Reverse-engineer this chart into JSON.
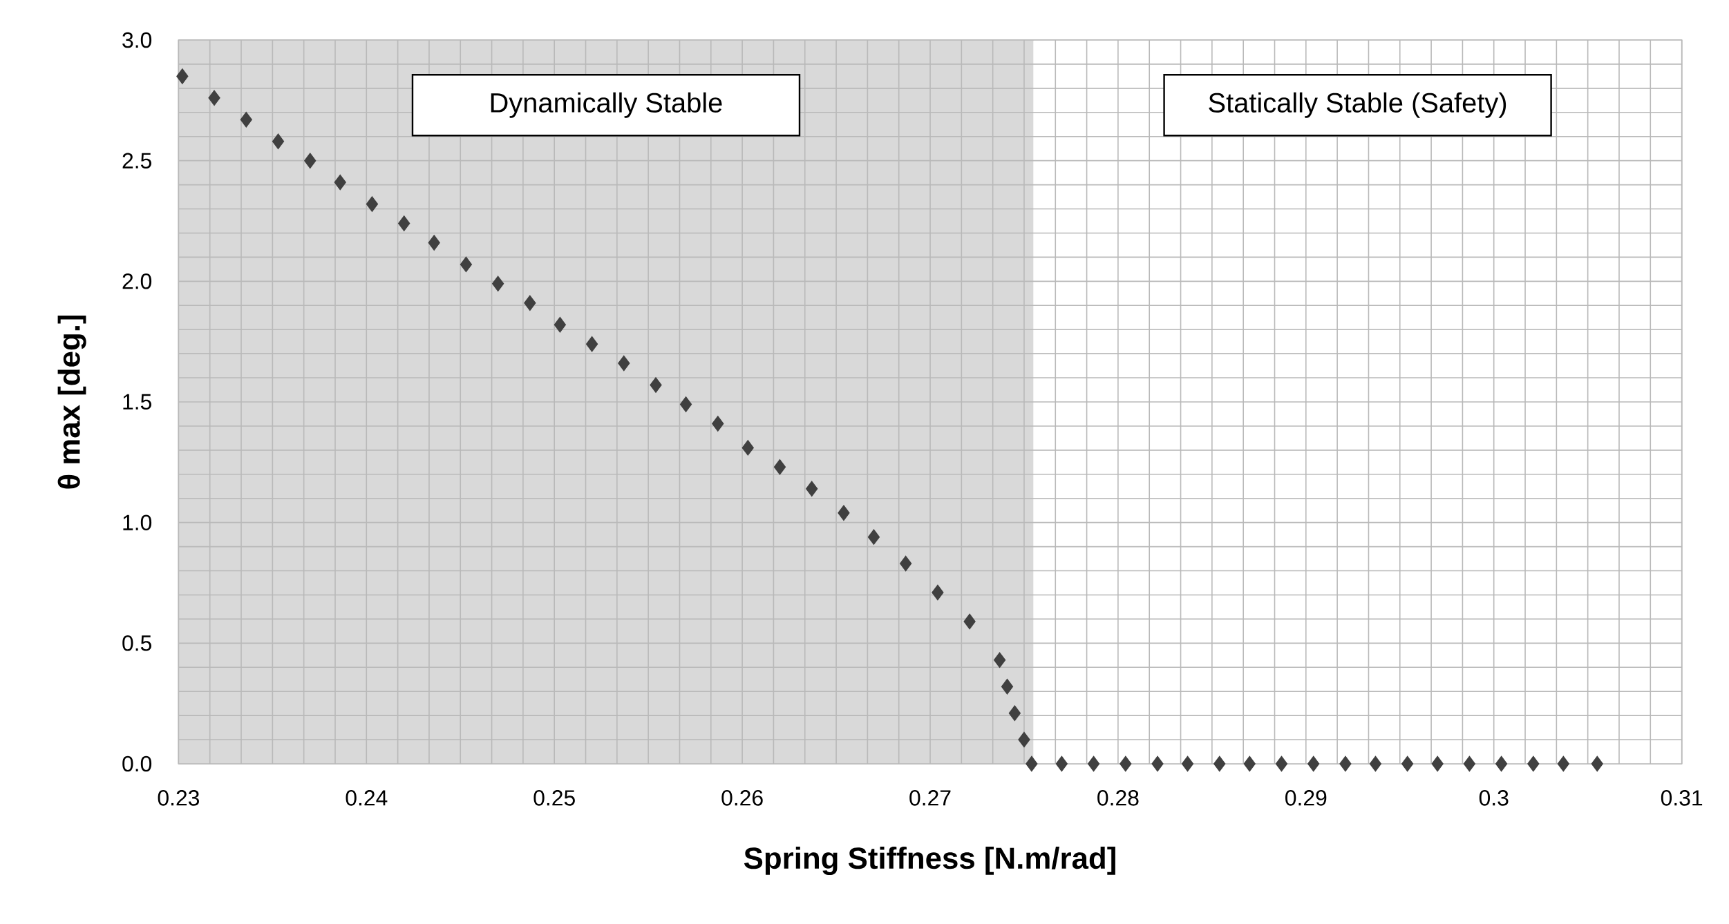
{
  "chart_data": {
    "type": "scatter",
    "xlabel": "Spring Stiffness  [N.m/rad]",
    "ylabel": "θ max  [deg.]",
    "xlim": [
      0.23,
      0.31
    ],
    "ylim": [
      0,
      3
    ],
    "xticks": [
      0.23,
      0.24,
      0.25,
      0.26,
      0.27,
      0.28,
      0.29,
      0.3,
      0.31
    ],
    "yticks": [
      {
        "value": 0,
        "label": "0.0"
      },
      {
        "value": 0.5,
        "label": "0.5"
      },
      {
        "value": 1,
        "label": "1.0"
      },
      {
        "value": 1.5,
        "label": "1.5"
      },
      {
        "value": 2,
        "label": "2.0"
      },
      {
        "value": 2.5,
        "label": "2.5"
      },
      {
        "value": 3,
        "label": "3.0"
      }
    ],
    "grid": true,
    "marker": "diamond",
    "bands": [
      {
        "axis": "x",
        "from": 0.23,
        "to": 0.2755,
        "label": "Dynamically Stable",
        "color": "#d9d9d9"
      },
      {
        "axis": "x",
        "from": 0.2755,
        "to": 0.31,
        "label": "Statically Stable  (Safety)",
        "color": "#ffffff"
      }
    ],
    "series": [
      {
        "color": "#404040",
        "x": [
          0.2302,
          0.2319,
          0.2336,
          0.2353,
          0.237,
          0.2386,
          0.2403,
          0.242,
          0.2436,
          0.2453,
          0.247,
          0.2487,
          0.2503,
          0.252,
          0.2537,
          0.2554,
          0.257,
          0.2587,
          0.2603,
          0.262,
          0.2637,
          0.2654,
          0.267,
          0.2687,
          0.2704,
          0.2721,
          0.2737,
          0.2741,
          0.2745,
          0.275,
          0.2754,
          0.277,
          0.2787,
          0.2804,
          0.2821,
          0.2837,
          0.2854,
          0.287,
          0.2887,
          0.2904,
          0.2921,
          0.2937,
          0.2954,
          0.297,
          0.2987,
          0.3004,
          0.3021,
          0.3037,
          0.3055
        ],
        "values": [
          2.85,
          2.76,
          2.67,
          2.58,
          2.5,
          2.41,
          2.32,
          2.24,
          2.16,
          2.07,
          1.99,
          1.91,
          1.82,
          1.74,
          1.66,
          1.57,
          1.49,
          1.41,
          1.31,
          1.23,
          1.14,
          1.04,
          0.94,
          0.83,
          0.71,
          0.59,
          0.43,
          0.32,
          0.21,
          0.1,
          0,
          0,
          0,
          0,
          0,
          0,
          0,
          0,
          0,
          0,
          0,
          0,
          0,
          0,
          0,
          0,
          0,
          0,
          0
        ]
      }
    ]
  }
}
